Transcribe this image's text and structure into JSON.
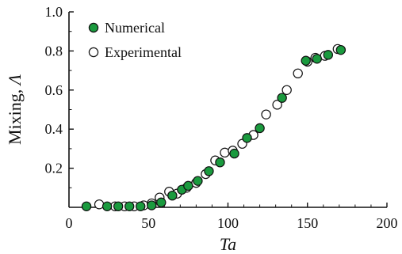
{
  "chart_data": {
    "type": "scatter",
    "xlabel": "Ta",
    "ylabel": "Mixing, Λ",
    "ylabel_prefix": "Mixing, ",
    "ylabel_symbol": "Λ",
    "xlim": [
      0,
      200
    ],
    "ylim": [
      0,
      1.0
    ],
    "xticks": [
      0,
      50,
      100,
      150,
      200
    ],
    "xtick_labels": [
      "0",
      "50",
      "100",
      "150",
      "200"
    ],
    "yticks": [
      0.2,
      0.4,
      0.6,
      0.8,
      1.0
    ],
    "ytick_labels": [
      "0.2",
      "0.4",
      "0.6",
      "0.8",
      "1.0"
    ],
    "grid": false,
    "legend_position": "top-left",
    "colors": {
      "numerical": "#1a9a3e",
      "experimental": "#ffffff",
      "stroke": "#111111"
    },
    "series": [
      {
        "name": "Numerical",
        "marker": "filled-circle",
        "x": [
          11,
          24,
          31,
          38,
          45,
          52,
          58,
          65,
          71,
          75,
          81,
          88,
          95,
          104,
          112,
          120,
          134,
          149,
          156,
          163,
          171
        ],
        "y": [
          0.005,
          0.005,
          0.005,
          0.005,
          0.005,
          0.01,
          0.025,
          0.06,
          0.09,
          0.11,
          0.135,
          0.185,
          0.23,
          0.275,
          0.355,
          0.405,
          0.56,
          0.75,
          0.76,
          0.78,
          0.805
        ]
      },
      {
        "name": "Experimental",
        "marker": "open-circle",
        "x": [
          19,
          29,
          35,
          41,
          47,
          52,
          57,
          63,
          68,
          74,
          80,
          86,
          92,
          98,
          103,
          109,
          116,
          124,
          131,
          137,
          144,
          150,
          155,
          161,
          169
        ],
        "y": [
          0.015,
          0.005,
          0.005,
          0.005,
          0.01,
          0.02,
          0.05,
          0.08,
          0.07,
          0.1,
          0.125,
          0.17,
          0.24,
          0.28,
          0.29,
          0.325,
          0.37,
          0.475,
          0.525,
          0.6,
          0.685,
          0.745,
          0.765,
          0.775,
          0.81
        ]
      }
    ]
  }
}
